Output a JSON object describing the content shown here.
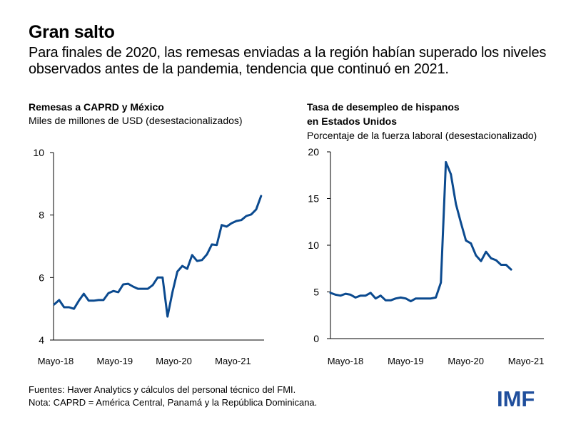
{
  "header": {
    "title": "Gran salto",
    "subtitle": "Para finales de 2020, las remesas enviadas a la región habían superado los niveles observados antes de la pandemia, tendencia que continuó en 2021."
  },
  "footer": {
    "sources": "Fuentes: Haver Analytics y cálculos del personal técnico del FMI.",
    "note": "Nota: CAPRD = América Central, Panamá y la República Dominicana."
  },
  "logo": {
    "text": "IMF",
    "color": "#1f4e9c"
  },
  "chart_data": [
    {
      "type": "line",
      "title": "Remesas a CAPRD y México",
      "subtitle": "Miles de millones de USD (desestacionalizados)",
      "xlabel": "",
      "ylabel": "",
      "ylim": [
        4,
        10
      ],
      "yticks": [
        "4",
        "6",
        "8",
        "10"
      ],
      "ytick_values": [
        4,
        6,
        8,
        10
      ],
      "xtick_labels": [
        "Mayo-18",
        "Mayo-19",
        "Mayo-20",
        "Mayo-21"
      ],
      "xtick_indices": [
        0,
        12,
        24,
        36
      ],
      "grid": false,
      "line_color": "#0b4a8f",
      "series": [
        {
          "name": "Remesas",
          "start": "2018-05",
          "frequency": "monthly",
          "values": [
            5.14,
            5.28,
            5.05,
            5.05,
            5.0,
            5.26,
            5.48,
            5.26,
            5.26,
            5.28,
            5.28,
            5.5,
            5.57,
            5.53,
            5.78,
            5.8,
            5.71,
            5.64,
            5.64,
            5.64,
            5.76,
            6.0,
            6.0,
            4.75,
            5.53,
            6.19,
            6.37,
            6.28,
            6.72,
            6.53,
            6.56,
            6.74,
            7.06,
            7.04,
            7.68,
            7.63,
            7.74,
            7.81,
            7.84,
            7.97,
            8.02,
            8.18,
            8.61
          ]
        }
      ]
    },
    {
      "type": "line",
      "title": "Tasa de desempleo de hispanos en Estados Unidos",
      "title_lines": [
        "Tasa de desempleo de hispanos",
        "en Estados Unidos"
      ],
      "subtitle": "Porcentaje de la fuerza laboral (desestacionalizado)",
      "xlabel": "",
      "ylabel": "",
      "ylim": [
        0,
        20
      ],
      "yticks": [
        "0",
        "5",
        "10",
        "15",
        "20"
      ],
      "ytick_values": [
        0,
        5,
        10,
        15,
        20
      ],
      "xtick_labels": [
        "Mayo-18",
        "Mayo-19",
        "Mayo-20",
        "Mayo-21"
      ],
      "xtick_indices": [
        0,
        12,
        24,
        36
      ],
      "grid": false,
      "line_color": "#0b4a8f",
      "series": [
        {
          "name": "Desempleo hispanos",
          "start": "2018-04",
          "frequency": "monthly",
          "values": [
            4.9,
            4.7,
            4.6,
            4.8,
            4.7,
            4.4,
            4.6,
            4.6,
            4.9,
            4.3,
            4.6,
            4.1,
            4.1,
            4.3,
            4.4,
            4.3,
            4.0,
            4.3,
            4.3,
            4.3,
            4.3,
            4.4,
            6.0,
            18.9,
            17.6,
            14.4,
            12.4,
            10.5,
            10.2,
            8.9,
            8.3,
            9.3,
            8.6,
            8.4,
            7.9,
            7.9,
            7.4
          ]
        }
      ]
    }
  ]
}
